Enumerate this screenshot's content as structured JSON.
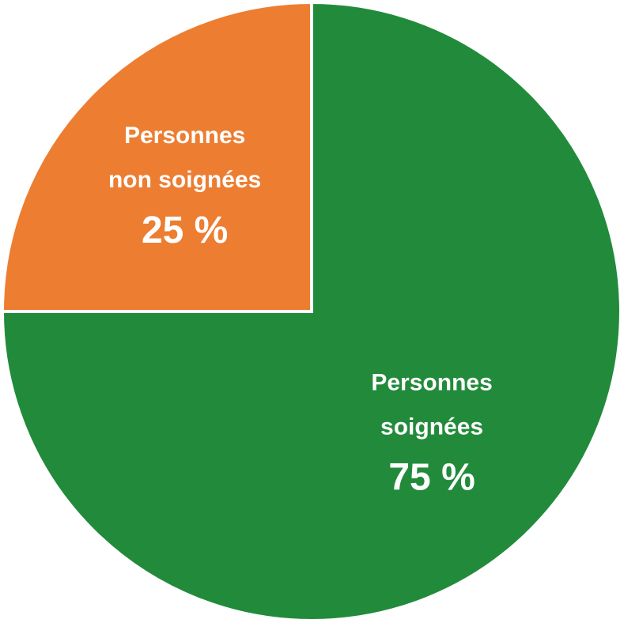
{
  "chart_data": {
    "type": "pie",
    "title": "",
    "slices": [
      {
        "label_lines": [
          "Personnes",
          "soignées"
        ],
        "value": 75,
        "value_label": "75 %",
        "color": "#228B3B"
      },
      {
        "label_lines": [
          "Personnes",
          "non soignées"
        ],
        "value": 25,
        "value_label": "25 %",
        "color": "#ED7D31"
      }
    ],
    "legend": "none",
    "start_angle": "12 o'clock",
    "direction": "clockwise"
  }
}
